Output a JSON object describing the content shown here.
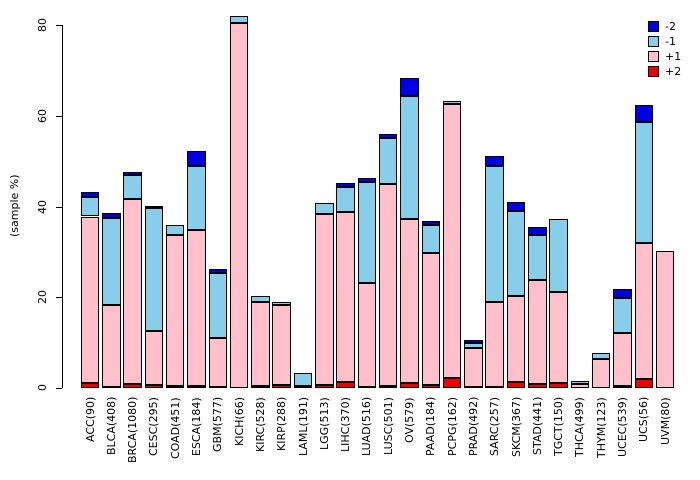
{
  "chart_data": {
    "type": "bar",
    "stacked": true,
    "title": "",
    "xlabel": "",
    "ylabel": "(sample %)",
    "ylim": [
      0,
      80
    ],
    "yticks": [
      0,
      20,
      40,
      60,
      80
    ],
    "grid": false,
    "legend_position": "top-right",
    "stack_order": [
      "+2",
      "+1",
      "-1",
      "-2"
    ],
    "categories": [
      "ACC(90)",
      "BLCA(408)",
      "BRCA(1080)",
      "CESC(295)",
      "COAD(451)",
      "ESCA(184)",
      "GBM(577)",
      "KICH(66)",
      "KIRC(528)",
      "KIRP(288)",
      "LAML(191)",
      "LGG(513)",
      "LIHC(370)",
      "LUAD(516)",
      "LUSC(501)",
      "OV(579)",
      "PAAD(184)",
      "PCPG(162)",
      "PRAD(492)",
      "SARC(257)",
      "SKCM(367)",
      "STAD(441)",
      "TGCT(150)",
      "THCA(499)",
      "THYM(123)",
      "UCEC(539)",
      "UCS(56)",
      "UVM(80)"
    ],
    "series": [
      {
        "name": "+2",
        "color": "#ee0000",
        "values": [
          1.1,
          0.2,
          0.8,
          0.7,
          0.4,
          0.5,
          0.3,
          0,
          0.4,
          0.6,
          0.1,
          0.7,
          1.4,
          0.3,
          0.5,
          1.0,
          0.7,
          2.1,
          0.2,
          0.3,
          1.4,
          0.8,
          1.1,
          0.1,
          0,
          0.4,
          1.9,
          0
        ]
      },
      {
        "name": "+1",
        "color": "#ffc0cb",
        "values": [
          36.7,
          18.2,
          40.8,
          11.8,
          33.3,
          34.3,
          10.7,
          80.5,
          18.6,
          17.6,
          0.4,
          37.6,
          37.4,
          22.8,
          44.4,
          36.2,
          29.0,
          60.4,
          8.6,
          18.7,
          18.9,
          23.0,
          20.1,
          0.7,
          6.5,
          11.7,
          30.1,
          30.1
        ]
      },
      {
        "name": "-1",
        "color": "#87ceeb",
        "values": [
          4.4,
          19.1,
          5.4,
          27.1,
          2.2,
          14.2,
          14.3,
          1.4,
          1.2,
          0.8,
          2.8,
          2.4,
          5.6,
          22.2,
          10.1,
          27.1,
          6.2,
          0.7,
          1.1,
          29.9,
          18.7,
          9.9,
          16.0,
          0.8,
          1.3,
          7.7,
          26.7,
          0
        ]
      },
      {
        "name": "-2",
        "color": "#0000e0",
        "values": [
          1.1,
          1.0,
          0.6,
          0.5,
          0,
          3.2,
          1.0,
          0,
          0,
          0,
          0,
          0,
          0.8,
          1.0,
          0.9,
          4.0,
          0.9,
          0,
          0.6,
          2.2,
          2.0,
          1.7,
          0,
          0,
          0,
          2.0,
          3.6,
          0
        ]
      }
    ],
    "legend": [
      {
        "label": "-2",
        "color": "#0000e0"
      },
      {
        "label": "-1",
        "color": "#87ceeb"
      },
      {
        "label": "+1",
        "color": "#ffc0cb"
      },
      {
        "label": "+2",
        "color": "#ee0000"
      }
    ]
  }
}
